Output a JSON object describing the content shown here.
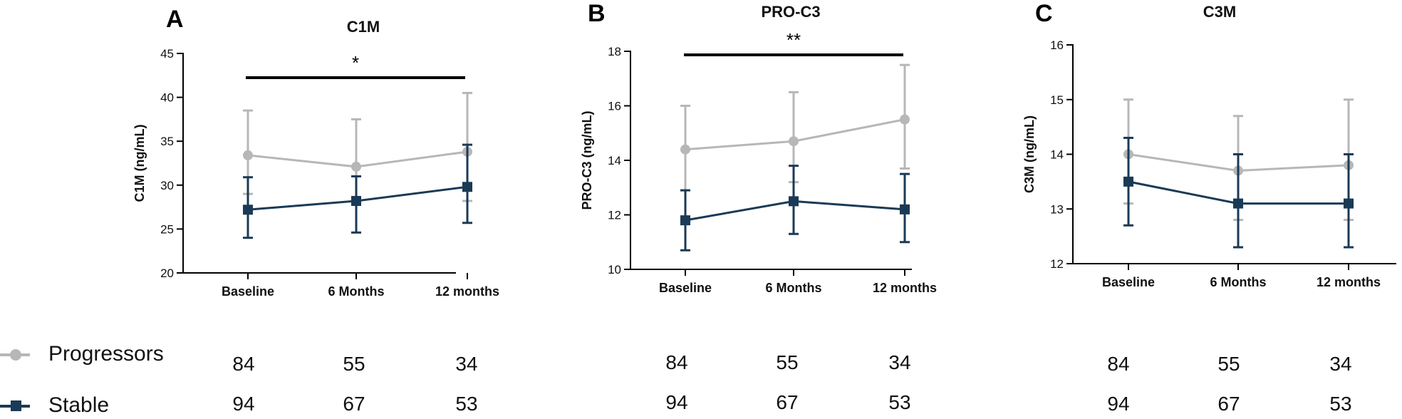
{
  "legend": {
    "progressors_label": "Progressors",
    "stable_label": "Stable"
  },
  "colors": {
    "progressors": "#b7b7b7",
    "stable": "#1a3a56",
    "sig_bar": "#000000"
  },
  "chart_data": [
    {
      "type": "line",
      "panel": "A",
      "title": "C1M",
      "ylabel": "C1M (ng/mL)",
      "xlabel": "",
      "categories": [
        "Baseline",
        "6 Months",
        "12 months"
      ],
      "ylim": [
        20,
        45
      ],
      "yticks": [
        20,
        25,
        30,
        35,
        40,
        45
      ],
      "significance": "*",
      "series": [
        {
          "name": "Progressors",
          "marker": "circle",
          "values": [
            33.4,
            32.1,
            33.8
          ],
          "err_low": [
            29.0,
            28.0,
            28.2
          ],
          "err_high": [
            38.5,
            37.5,
            40.5
          ]
        },
        {
          "name": "Stable",
          "marker": "square",
          "values": [
            27.2,
            28.2,
            29.8
          ],
          "err_low": [
            24.0,
            24.6,
            25.7
          ],
          "err_high": [
            30.9,
            31.0,
            34.6
          ]
        }
      ],
      "n": {
        "progressors": [
          "84",
          "55",
          "34"
        ],
        "stable": [
          "94",
          "67",
          "53"
        ]
      }
    },
    {
      "type": "line",
      "panel": "B",
      "title": "PRO-C3",
      "ylabel": "PRO-C3 (ng/mL)",
      "xlabel": "",
      "categories": [
        "Baseline",
        "6 Months",
        "12 months"
      ],
      "ylim": [
        10,
        18
      ],
      "yticks": [
        10,
        12,
        14,
        16,
        18
      ],
      "significance": "**",
      "series": [
        {
          "name": "Progressors",
          "marker": "circle",
          "values": [
            14.4,
            14.7,
            15.5
          ],
          "err_low": [
            12.9,
            13.2,
            13.7
          ],
          "err_high": [
            16.0,
            16.5,
            17.5
          ]
        },
        {
          "name": "Stable",
          "marker": "square",
          "values": [
            11.8,
            12.5,
            12.2
          ],
          "err_low": [
            10.7,
            11.3,
            11.0
          ],
          "err_high": [
            12.9,
            13.8,
            13.5
          ]
        }
      ],
      "n": {
        "progressors": [
          "84",
          "55",
          "34"
        ],
        "stable": [
          "94",
          "67",
          "53"
        ]
      }
    },
    {
      "type": "line",
      "panel": "C",
      "title": "C3M",
      "ylabel": "C3M (ng/mL)",
      "xlabel": "",
      "categories": [
        "Baseline",
        "6 Months",
        "12 months"
      ],
      "ylim": [
        12,
        16
      ],
      "yticks": [
        12,
        13,
        14,
        15,
        16
      ],
      "significance": "",
      "series": [
        {
          "name": "Progressors",
          "marker": "circle",
          "values": [
            14.0,
            13.7,
            13.8
          ],
          "err_low": [
            13.1,
            12.8,
            12.8
          ],
          "err_high": [
            15.0,
            14.7,
            15.0
          ]
        },
        {
          "name": "Stable",
          "marker": "square",
          "values": [
            13.5,
            13.1,
            13.1
          ],
          "err_low": [
            12.7,
            12.3,
            12.3
          ],
          "err_high": [
            14.3,
            14.0,
            14.0
          ]
        }
      ],
      "n": {
        "progressors": [
          "84",
          "55",
          "34"
        ],
        "stable": [
          "94",
          "67",
          "53"
        ]
      }
    }
  ]
}
